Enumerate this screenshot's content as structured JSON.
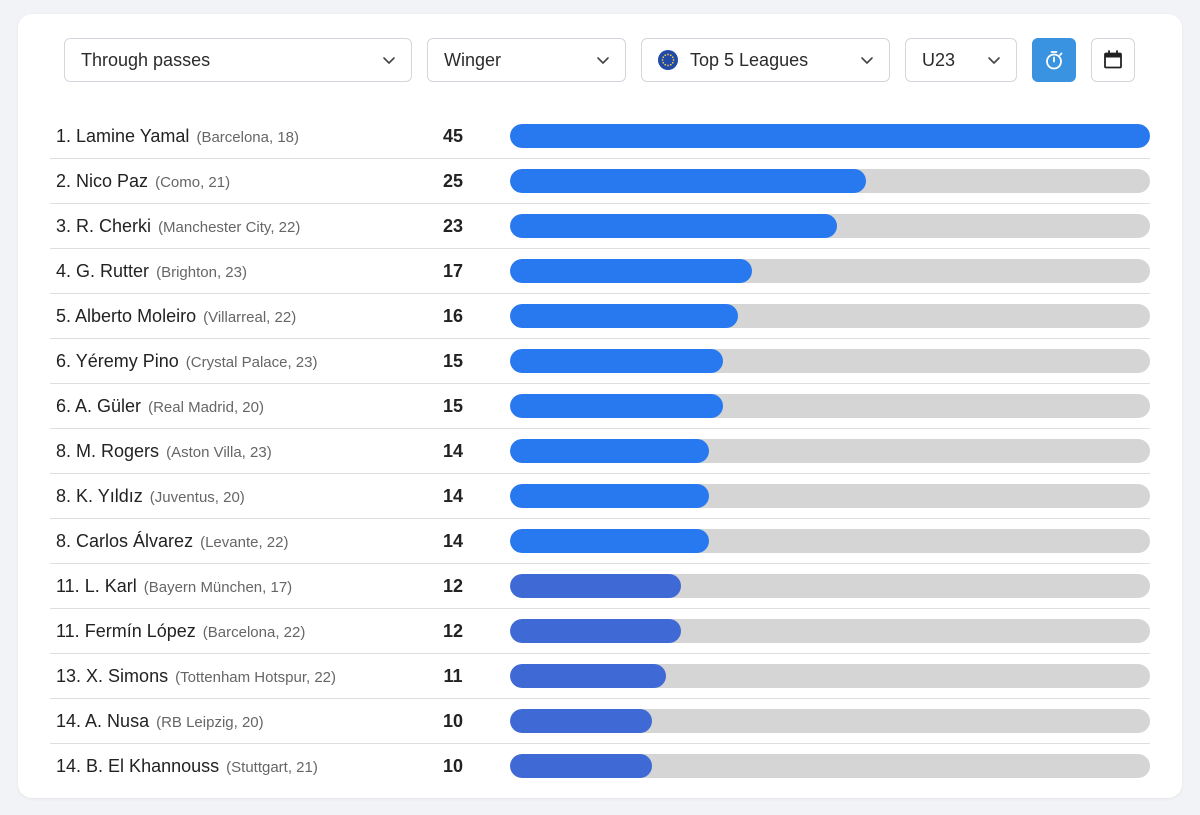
{
  "filters": {
    "metric": "Through passes",
    "position": "Winger",
    "competition": "Top 5 Leagues",
    "age_group": "U23",
    "timer_icon": "stopwatch-icon",
    "calendar_icon": "calendar-icon"
  },
  "colors": {
    "bar_primary": "#2878ef",
    "bar_secondary": "#3f6ad5",
    "track": "#d5d5d5",
    "accent_button": "#3a93e0"
  },
  "chart_data": {
    "type": "bar",
    "orientation": "horizontal",
    "title": "",
    "xlabel": "",
    "ylabel": "",
    "xlim": [
      0,
      45
    ],
    "categories": [
      "1. Lamine Yamal",
      "2. Nico Paz",
      "3. R. Cherki",
      "4. G. Rutter",
      "5. Alberto Moleiro",
      "6. Yéremy Pino",
      "6. A. Güler",
      "8. M. Rogers",
      "8. K. Yıldız",
      "8. Carlos Álvarez",
      "11. L. Karl",
      "11. Fermín López",
      "13. X. Simons",
      "14. A. Nusa",
      "14. B. El Khannouss"
    ],
    "values": [
      45,
      25,
      23,
      17,
      16,
      15,
      15,
      14,
      14,
      14,
      12,
      12,
      11,
      10,
      10
    ],
    "rows": [
      {
        "rank": "1.",
        "name": "Lamine Yamal",
        "meta": "(Barcelona, 18)",
        "value": 45
      },
      {
        "rank": "2.",
        "name": "Nico Paz",
        "meta": "(Como, 21)",
        "value": 25
      },
      {
        "rank": "3.",
        "name": "R. Cherki",
        "meta": "(Manchester City, 22)",
        "value": 23
      },
      {
        "rank": "4.",
        "name": "G. Rutter",
        "meta": "(Brighton, 23)",
        "value": 17
      },
      {
        "rank": "5.",
        "name": "Alberto Moleiro",
        "meta": "(Villarreal, 22)",
        "value": 16
      },
      {
        "rank": "6.",
        "name": "Yéremy Pino",
        "meta": "(Crystal Palace, 23)",
        "value": 15
      },
      {
        "rank": "6.",
        "name": "A. Güler",
        "meta": "(Real Madrid, 20)",
        "value": 15
      },
      {
        "rank": "8.",
        "name": "M. Rogers",
        "meta": "(Aston Villa, 23)",
        "value": 14
      },
      {
        "rank": "8.",
        "name": "K. Yıldız",
        "meta": "(Juventus, 20)",
        "value": 14
      },
      {
        "rank": "8.",
        "name": "Carlos Álvarez",
        "meta": "(Levante, 22)",
        "value": 14
      },
      {
        "rank": "11.",
        "name": "L. Karl",
        "meta": "(Bayern München, 17)",
        "value": 12
      },
      {
        "rank": "11.",
        "name": "Fermín López",
        "meta": "(Barcelona, 22)",
        "value": 12
      },
      {
        "rank": "13.",
        "name": "X. Simons",
        "meta": "(Tottenham Hotspur, 22)",
        "value": 11
      },
      {
        "rank": "14.",
        "name": "A. Nusa",
        "meta": "(RB Leipzig, 20)",
        "value": 10
      },
      {
        "rank": "14.",
        "name": "B. El Khannouss",
        "meta": "(Stuttgart, 21)",
        "value": 10
      }
    ]
  }
}
